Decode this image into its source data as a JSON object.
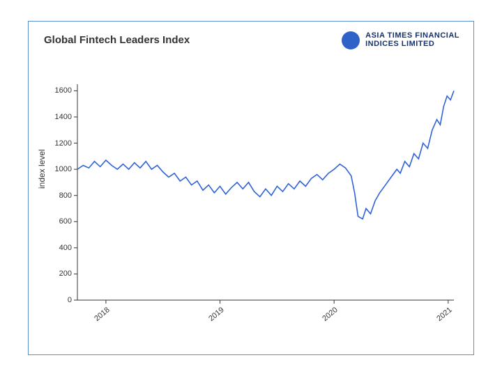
{
  "card": {
    "border_color": "#5b8fd6",
    "background": "#ffffff"
  },
  "title": {
    "text": "Global Fintech Leaders Index",
    "fontsize": 15,
    "color": "#333333"
  },
  "brand": {
    "line1": "ASIA TIMES FINANCIAL",
    "line2": "INDICES LIMITED",
    "color": "#14326e",
    "fontsize": 11,
    "mark_color": "#2f62c9"
  },
  "chart": {
    "type": "line",
    "ylabel": "index level",
    "ylabel_fontsize": 12,
    "tick_fontsize": 11,
    "tick_color": "#333333",
    "axis_color": "#333333",
    "grid": false,
    "line_color": "#2f62d8",
    "line_width": 1.6,
    "background_color": "#ffffff",
    "xlim": [
      2017.75,
      2021.05
    ],
    "ylim": [
      0,
      1650
    ],
    "yticks": [
      0,
      200,
      400,
      600,
      800,
      1000,
      1200,
      1400,
      1600
    ],
    "xticks": [
      {
        "v": 2018,
        "label": "2018"
      },
      {
        "v": 2019,
        "label": "2019"
      },
      {
        "v": 2020,
        "label": "2020"
      },
      {
        "v": 2021,
        "label": "2021"
      }
    ],
    "series": [
      {
        "x": 2017.75,
        "y": 1000
      },
      {
        "x": 2017.8,
        "y": 1030
      },
      {
        "x": 2017.85,
        "y": 1010
      },
      {
        "x": 2017.9,
        "y": 1060
      },
      {
        "x": 2017.95,
        "y": 1020
      },
      {
        "x": 2018.0,
        "y": 1070
      },
      {
        "x": 2018.05,
        "y": 1030
      },
      {
        "x": 2018.1,
        "y": 1000
      },
      {
        "x": 2018.15,
        "y": 1040
      },
      {
        "x": 2018.2,
        "y": 1000
      },
      {
        "x": 2018.25,
        "y": 1050
      },
      {
        "x": 2018.3,
        "y": 1010
      },
      {
        "x": 2018.35,
        "y": 1060
      },
      {
        "x": 2018.4,
        "y": 1000
      },
      {
        "x": 2018.45,
        "y": 1030
      },
      {
        "x": 2018.5,
        "y": 980
      },
      {
        "x": 2018.55,
        "y": 940
      },
      {
        "x": 2018.6,
        "y": 970
      },
      {
        "x": 2018.65,
        "y": 910
      },
      {
        "x": 2018.7,
        "y": 940
      },
      {
        "x": 2018.75,
        "y": 880
      },
      {
        "x": 2018.8,
        "y": 910
      },
      {
        "x": 2018.85,
        "y": 840
      },
      {
        "x": 2018.9,
        "y": 880
      },
      {
        "x": 2018.95,
        "y": 820
      },
      {
        "x": 2019.0,
        "y": 870
      },
      {
        "x": 2019.05,
        "y": 810
      },
      {
        "x": 2019.1,
        "y": 860
      },
      {
        "x": 2019.15,
        "y": 900
      },
      {
        "x": 2019.2,
        "y": 850
      },
      {
        "x": 2019.25,
        "y": 900
      },
      {
        "x": 2019.3,
        "y": 830
      },
      {
        "x": 2019.35,
        "y": 790
      },
      {
        "x": 2019.4,
        "y": 850
      },
      {
        "x": 2019.45,
        "y": 800
      },
      {
        "x": 2019.5,
        "y": 870
      },
      {
        "x": 2019.55,
        "y": 830
      },
      {
        "x": 2019.6,
        "y": 890
      },
      {
        "x": 2019.65,
        "y": 850
      },
      {
        "x": 2019.7,
        "y": 910
      },
      {
        "x": 2019.75,
        "y": 870
      },
      {
        "x": 2019.8,
        "y": 930
      },
      {
        "x": 2019.85,
        "y": 960
      },
      {
        "x": 2019.9,
        "y": 920
      },
      {
        "x": 2019.95,
        "y": 970
      },
      {
        "x": 2020.0,
        "y": 1000
      },
      {
        "x": 2020.05,
        "y": 1040
      },
      {
        "x": 2020.1,
        "y": 1010
      },
      {
        "x": 2020.15,
        "y": 950
      },
      {
        "x": 2020.18,
        "y": 820
      },
      {
        "x": 2020.21,
        "y": 640
      },
      {
        "x": 2020.25,
        "y": 620
      },
      {
        "x": 2020.28,
        "y": 700
      },
      {
        "x": 2020.32,
        "y": 660
      },
      {
        "x": 2020.36,
        "y": 760
      },
      {
        "x": 2020.4,
        "y": 820
      },
      {
        "x": 2020.45,
        "y": 880
      },
      {
        "x": 2020.5,
        "y": 940
      },
      {
        "x": 2020.55,
        "y": 1000
      },
      {
        "x": 2020.58,
        "y": 970
      },
      {
        "x": 2020.62,
        "y": 1060
      },
      {
        "x": 2020.66,
        "y": 1020
      },
      {
        "x": 2020.7,
        "y": 1120
      },
      {
        "x": 2020.74,
        "y": 1080
      },
      {
        "x": 2020.78,
        "y": 1200
      },
      {
        "x": 2020.82,
        "y": 1160
      },
      {
        "x": 2020.86,
        "y": 1300
      },
      {
        "x": 2020.9,
        "y": 1380
      },
      {
        "x": 2020.93,
        "y": 1340
      },
      {
        "x": 2020.96,
        "y": 1480
      },
      {
        "x": 2020.99,
        "y": 1560
      },
      {
        "x": 2021.02,
        "y": 1530
      },
      {
        "x": 2021.05,
        "y": 1600
      }
    ]
  }
}
